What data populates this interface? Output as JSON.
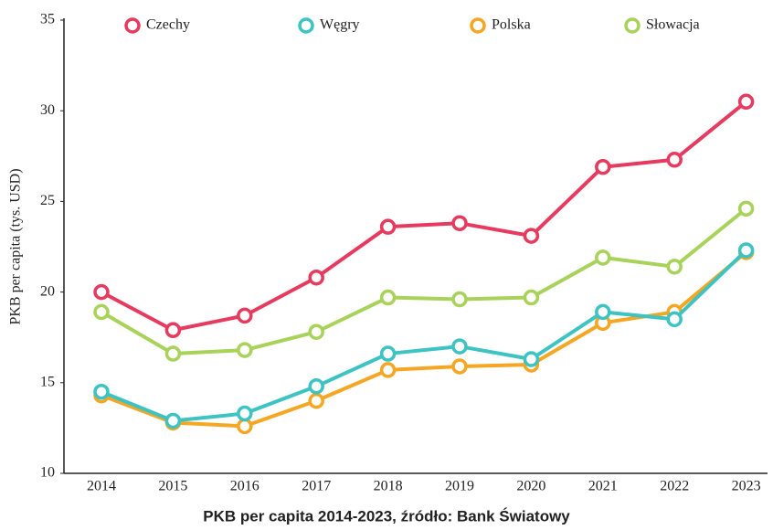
{
  "chart_data": {
    "type": "line",
    "title": "PKB per capita 2014-2023, źródło: Bank Światowy",
    "y_label": "PKB per capita (tys. USD)",
    "categories": [
      "2014",
      "2015",
      "2016",
      "2017",
      "2018",
      "2019",
      "2020",
      "2021",
      "2022",
      "2023"
    ],
    "series": [
      {
        "name": "Czechy",
        "color": "#e63a5e",
        "values": [
          20.0,
          17.9,
          18.7,
          20.8,
          23.6,
          23.8,
          23.1,
          26.9,
          27.3,
          30.5
        ]
      },
      {
        "name": "Węgry",
        "color": "#3ec3c3",
        "values": [
          14.5,
          12.9,
          13.3,
          14.8,
          16.6,
          17.0,
          16.3,
          18.9,
          18.5,
          22.3
        ]
      },
      {
        "name": "Polska",
        "color": "#f5a623",
        "values": [
          14.3,
          12.8,
          12.6,
          14.0,
          15.7,
          15.9,
          16.0,
          18.3,
          18.9,
          22.2
        ]
      },
      {
        "name": "Słowacja",
        "color": "#a9d25a",
        "values": [
          18.9,
          16.6,
          16.8,
          17.8,
          19.7,
          19.6,
          19.7,
          21.9,
          21.4,
          24.6
        ]
      }
    ],
    "ylim": [
      10,
      35
    ],
    "yticks": [
      10,
      15,
      20,
      25,
      30,
      35
    ],
    "legend": "top",
    "grid": false
  }
}
